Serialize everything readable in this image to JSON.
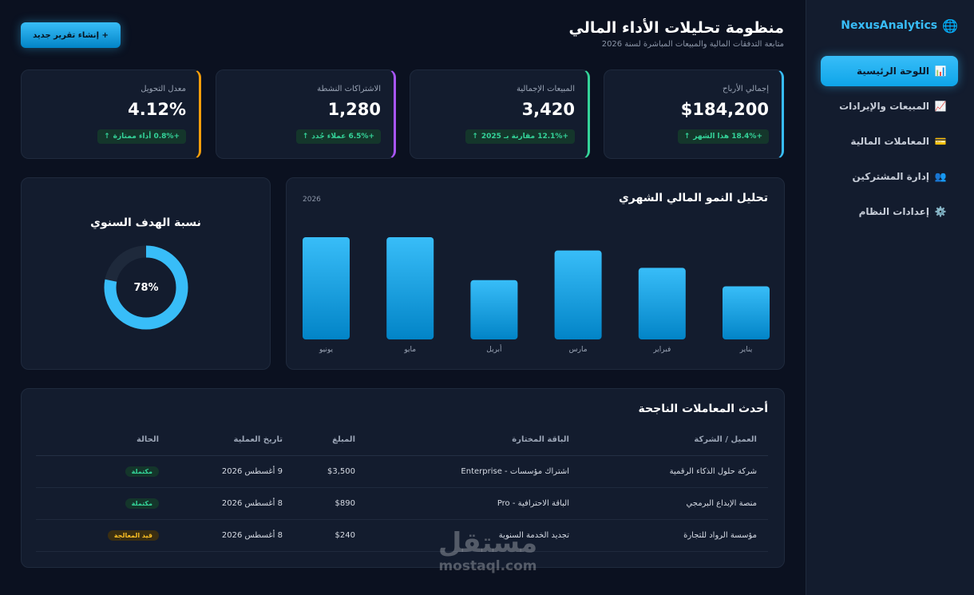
{
  "brand": {
    "name": "NexusAnalytics",
    "icon": "globe-icon"
  },
  "sidebar": {
    "items": [
      {
        "label": "اللوحة الرئيسية",
        "icon": "📊",
        "active": true
      },
      {
        "label": "المبيعات والإيرادات",
        "icon": "📈",
        "active": false
      },
      {
        "label": "المعاملات المالية",
        "icon": "💳",
        "active": false
      },
      {
        "label": "إدارة المشتركين",
        "icon": "👥",
        "active": false
      },
      {
        "label": "إعدادات النظام",
        "icon": "⚙️",
        "active": false
      }
    ]
  },
  "header": {
    "title": "منظومة تحليلات الأداء المالي",
    "subtitle": "متابعة التدفقات المالية والمبيعات المباشرة لسنة 2026",
    "new_report_label": "+ إنشاء تقرير جديد"
  },
  "kpis": [
    {
      "label": "إجمالي الأرباح",
      "value": "$184,200",
      "badge": "+18.4% هذا الشهر",
      "accent": "#38bdf8"
    },
    {
      "label": "المبيعات الإجمالية",
      "value": "3,420",
      "badge": "+12.1% مقارنة بـ 2025",
      "accent": "#34d399"
    },
    {
      "label": "الاشتراكات النشطة",
      "value": "1,280",
      "badge": "+6.5% عملاء جُدد",
      "accent": "#a855f7"
    },
    {
      "label": "معدل التحويل",
      "value": "4.12%",
      "badge": "+0.8% أداء ممتازة",
      "accent": "#f59e0b"
    }
  ],
  "chart": {
    "title": "تحليل النمو المالي الشهري",
    "year": "2026"
  },
  "chart_data": {
    "type": "bar",
    "categories": [
      "يناير",
      "فبراير",
      "مارس",
      "أبريل",
      "مايو",
      "يونيو"
    ],
    "values": [
      52,
      70,
      87,
      58,
      100,
      100
    ],
    "ylim": [
      0,
      100
    ],
    "grid": false
  },
  "goal": {
    "title": "نسبة الهدف السنوي",
    "percent": 78,
    "percent_label": "78%"
  },
  "transactions": {
    "title": "أحدث المعاملات الناجحة",
    "headers": [
      "العميل / الشركة",
      "الباقة المختارة",
      "المبلغ",
      "تاريخ العملية",
      "الحالة"
    ],
    "rows": [
      {
        "client": "شركة حلول الذكاء الرقمية",
        "plan": "اشتراك مؤسسات - Enterprise",
        "amount": "$3,500",
        "date": "9 أغسطس 2026",
        "status": "مكتملة",
        "status_type": "done"
      },
      {
        "client": "منصة الإبداع البرمجي",
        "plan": "الباقة الاحترافية - Pro",
        "amount": "$890",
        "date": "8 أغسطس 2026",
        "status": "مكتملة",
        "status_type": "done"
      },
      {
        "client": "مؤسسة الرواد للتجارة",
        "plan": "تجديد الخدمة السنوية",
        "amount": "$240",
        "date": "8 أغسطس 2026",
        "status": "قيد المعالجة",
        "status_type": "pending"
      }
    ]
  },
  "watermark": {
    "arabic": "مستقل",
    "latin": "mostaql.com"
  }
}
